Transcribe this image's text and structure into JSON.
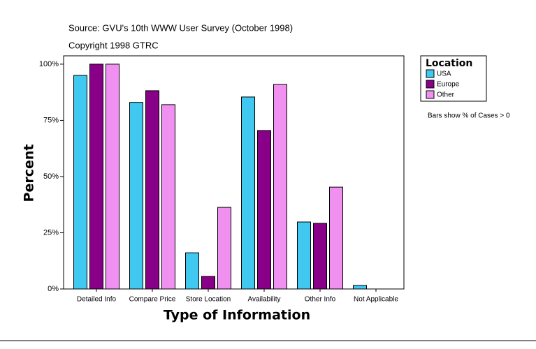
{
  "chart_data": {
    "type": "bar",
    "subtitle": "Source: GVU's 10th WWW User Survey (October 1998)",
    "copyright": "Copyright 1998 GTRC",
    "x_label": "Type of Information",
    "y_label": "Percent",
    "legend_title": "Location",
    "note": "Bars show % of Cases > 0",
    "categories": [
      "Detailed Info",
      "Compare Price",
      "Store Location",
      "Availability",
      "Other Info",
      "Not Applicable"
    ],
    "series": [
      {
        "name": "USA",
        "color": "#40c8f0",
        "values": [
          95,
          83,
          16.1,
          85.4,
          29.8,
          1.6
        ]
      },
      {
        "name": "Europe",
        "color": "#880088",
        "values": [
          100,
          88.2,
          5.6,
          70.5,
          29.2,
          0
        ]
      },
      {
        "name": "Other",
        "color": "#f090f0",
        "values": [
          100,
          82,
          36.3,
          91,
          45.3,
          0
        ]
      }
    ],
    "ylim": [
      0,
      103.7
    ],
    "yticks": [
      {
        "value": 0,
        "label": "0%"
      },
      {
        "value": 25,
        "label": "25%"
      },
      {
        "value": 50,
        "label": "50%"
      },
      {
        "value": 75,
        "label": "75%"
      },
      {
        "value": 100,
        "label": "100%"
      }
    ]
  }
}
